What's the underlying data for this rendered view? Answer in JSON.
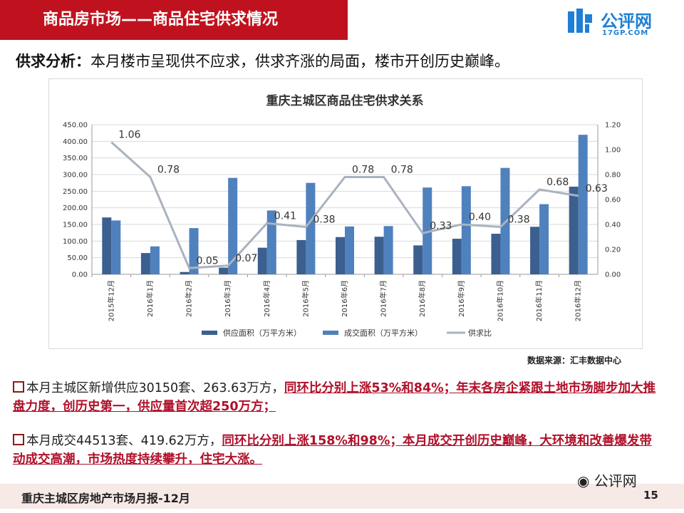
{
  "header": {
    "title": "商品房市场——商品住宅供求情况",
    "logo_text": "公评网",
    "logo_sub": "17GP.COM"
  },
  "headline": {
    "lead": "供求分析：",
    "text": "本月楼市呈现供不应求，供求齐涨的局面，楼市开创历史巅峰。"
  },
  "chart_data": {
    "type": "bar",
    "title": "重庆主城区商品住宅供求关系",
    "categories": [
      "2015年12月",
      "2016年1月",
      "2016年2月",
      "2016年3月",
      "2016年4月",
      "2016年5月",
      "2016年6月",
      "2016年7月",
      "2016年8月",
      "2016年9月",
      "2016年10月",
      "2016年11月",
      "2016年12月"
    ],
    "series": [
      {
        "name": "供应面积（万平方米）",
        "kind": "bar",
        "axis": "left",
        "color": "#3b5f8f",
        "values": [
          171,
          64,
          7,
          20,
          80,
          103,
          112,
          113,
          87,
          107,
          122,
          143,
          263.63
        ]
      },
      {
        "name": "成交面积（万平方米）",
        "kind": "bar",
        "axis": "left",
        "color": "#4f81bd",
        "values": [
          162,
          84,
          139,
          290,
          192,
          275,
          144,
          145,
          261,
          265,
          320,
          211,
          419.62
        ]
      },
      {
        "name": "供求比",
        "kind": "line",
        "axis": "right",
        "color": "#a9b3bf",
        "values": [
          1.06,
          0.78,
          0.05,
          0.07,
          0.41,
          0.38,
          0.78,
          0.78,
          0.33,
          0.4,
          0.38,
          0.68,
          0.63
        ],
        "labels": [
          "1.06",
          "0.78",
          "0.05",
          "0.07",
          "0.41",
          "0.38",
          "0.78",
          "0.78",
          "0.33",
          "0.40",
          "0.38",
          "0.68",
          "0.63"
        ]
      }
    ],
    "y_left": {
      "min": 0,
      "max": 450,
      "ticks": [
        "0.00",
        "50.00",
        "100.00",
        "150.00",
        "200.00",
        "250.00",
        "300.00",
        "350.00",
        "400.00",
        "450.00"
      ]
    },
    "y_right": {
      "min": 0,
      "max": 1.2,
      "ticks": [
        "0.00",
        "0.20",
        "0.40",
        "0.60",
        "0.80",
        "1.00",
        "1.20"
      ]
    },
    "legend_position": "bottom",
    "grid": true
  },
  "source": "数据来源：汇丰数据中心",
  "bullets": [
    {
      "plain": "本月主城区新增供应30150套、263.63万方，",
      "highlight": "同环比分别上涨53%和84%；年末各房企紧跟土地市场脚步加大推盘力度，创历史第一，供应量首次超250万方；"
    },
    {
      "plain": "本月成交44513套、419.62万方，",
      "highlight": "同环比分别上涨158%和98%；本月成交开创历史巅峰，大环境和改善爆发带动成交高潮，市场热度持续攀升，住宅大涨。"
    }
  ],
  "footer": {
    "text": "重庆主城区房地产市场月报-12月",
    "logo_text": "公评网",
    "page": "15"
  }
}
